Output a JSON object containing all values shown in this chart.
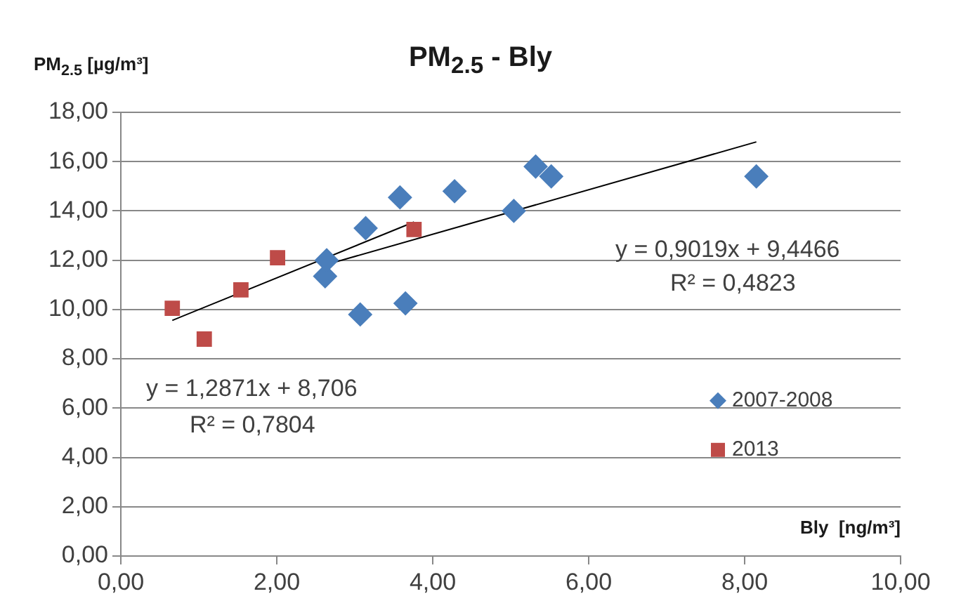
{
  "chart_data": {
    "type": "scatter",
    "title": "PM$_{2.5}$ - Bly",
    "xlabel": "Bly  [ng/m³]",
    "ylabel": "PM$_{2.5}$ [µg/m³]",
    "xlim": [
      0,
      10
    ],
    "xticks": [
      {
        "value": 0,
        "label": "0,00"
      },
      {
        "value": 2,
        "label": "2,00"
      },
      {
        "value": 4,
        "label": "4,00"
      },
      {
        "value": 6,
        "label": "6,00"
      },
      {
        "value": 8,
        "label": "8,00"
      },
      {
        "value": 10,
        "label": "10,00"
      }
    ],
    "ylim": [
      0,
      18
    ],
    "yticks": [
      {
        "value": 0,
        "label": "0,00"
      },
      {
        "value": 2,
        "label": "2,00"
      },
      {
        "value": 4,
        "label": "4,00"
      },
      {
        "value": 6,
        "label": "6,00"
      },
      {
        "value": 8,
        "label": "8,00"
      },
      {
        "value": 10,
        "label": "10,00"
      },
      {
        "value": 12,
        "label": "12,00"
      },
      {
        "value": 14,
        "label": "14,00"
      },
      {
        "value": 16,
        "label": "16,00"
      },
      {
        "value": 18,
        "label": "18,00"
      }
    ],
    "grid": "y",
    "legend": "right",
    "series": [
      {
        "name": "2007-2008",
        "color": "#4a7ebb",
        "marker": "diamond",
        "x": [
          2.62,
          2.64,
          3.07,
          3.14,
          3.58,
          3.65,
          4.28,
          5.04,
          5.32,
          5.52,
          8.15
        ],
        "values": [
          11.35,
          12.0,
          9.8,
          13.3,
          14.55,
          10.25,
          14.8,
          14.0,
          15.8,
          15.4,
          15.4
        ]
      },
      {
        "name": "2013",
        "color": "#be4b48",
        "marker": "square",
        "x": [
          0.66,
          1.07,
          1.54,
          2.01,
          3.76
        ],
        "values": [
          10.05,
          8.8,
          10.8,
          12.1,
          13.25
        ]
      },
      {
        "type": "line",
        "color": "#000000",
        "marker": "none",
        "x": [
          0.66,
          3.76
        ],
        "values": [
          9.56,
          13.55
        ]
      },
      {
        "type": "line",
        "color": "#000000",
        "marker": "none",
        "x": [
          2.62,
          8.15
        ],
        "values": [
          11.81,
          16.8
        ]
      }
    ],
    "annotations": [
      "y = 1,2871x + 8,706",
      "R² = 0,7804",
      "y = 0,9019x + 9,4466",
      "R² = 0,4823"
    ]
  }
}
